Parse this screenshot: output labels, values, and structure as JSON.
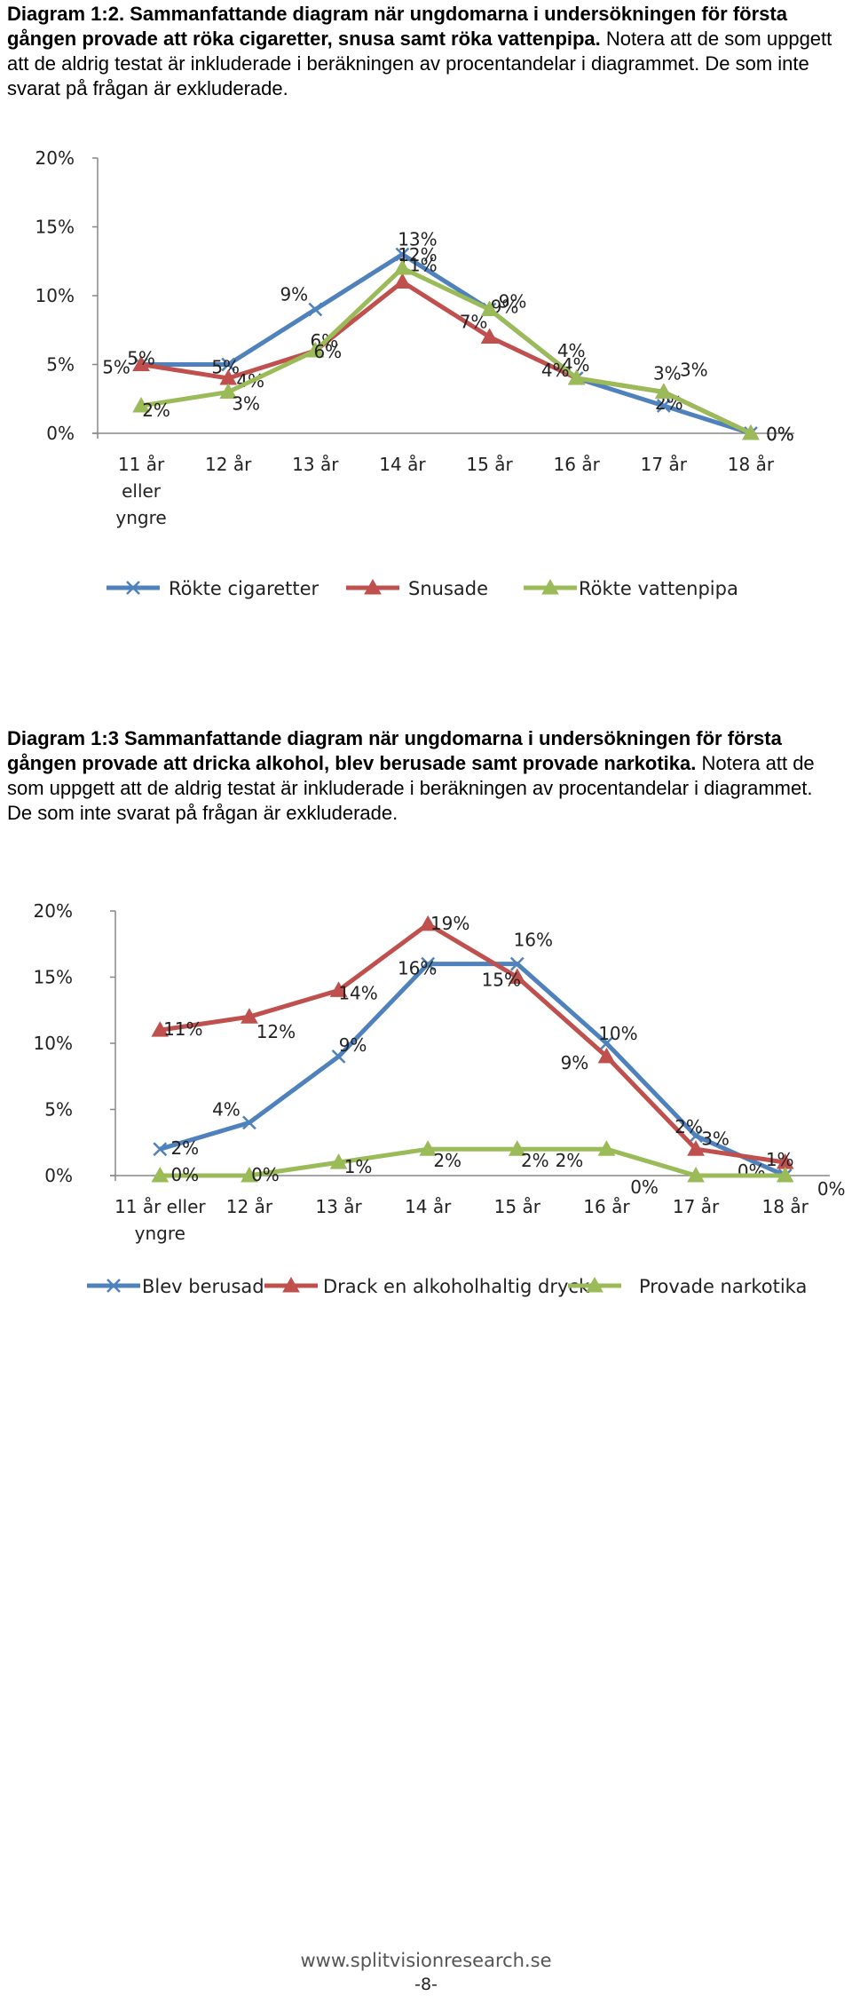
{
  "captions": [
    {
      "bold": "Diagram 1:2. Sammanfattande diagram när ungdomarna i undersökningen för första gången provade att röka cigaretter, snusa samt röka vattenpipa.",
      "normal": " Notera att de som uppgett att de aldrig testat är inkluderade i beräkningen av procentandelar i diagrammet. De som inte svarat på frågan är exkluderade."
    },
    {
      "bold": "Diagram 1:3 Sammanfattande diagram när ungdomarna i undersökningen för första gången provade att dricka alkohol, blev berusade samt provade narkotika.",
      "normal": " Notera att de som uppgett att de aldrig testat är inkluderade i beräkningen av procentandelar i diagrammet. De som inte svarat på frågan är exkluderade."
    }
  ],
  "chart_data": [
    {
      "type": "line",
      "categories": [
        "11 år eller yngre",
        "12 år",
        "13 år",
        "14 år",
        "15 år",
        "16 år",
        "17 år",
        "18 år"
      ],
      "category_lines": [
        [
          "11 år",
          "eller",
          "yngre"
        ],
        [
          "12 år"
        ],
        [
          "13 år"
        ],
        [
          "14 år"
        ],
        [
          "15 år"
        ],
        [
          "16 år"
        ],
        [
          "17 år"
        ],
        [
          "18 år"
        ]
      ],
      "yticks": [
        "0%",
        "5%",
        "10%",
        "15%",
        "20%"
      ],
      "ylim": [
        0,
        20
      ],
      "legend_position": "bottom",
      "series": [
        {
          "name": "Rökte cigaretter",
          "color": "#4f81bd",
          "marker": "x",
          "values": [
            5,
            5,
            9,
            13,
            9,
            4,
            2,
            0
          ],
          "labels": [
            "5%",
            "5%",
            "9%",
            "13%",
            "9%",
            "4%",
            "2%",
            "0%"
          ]
        },
        {
          "name": "Snusade",
          "color": "#c0504d",
          "marker": "triangle",
          "values": [
            5,
            4,
            6,
            11,
            7,
            4,
            3,
            0
          ],
          "labels": [
            "5%",
            "4%",
            "6%",
            "11%",
            "7%",
            "4%",
            "3%",
            "0%"
          ]
        },
        {
          "name": "Rökte vattenpipa",
          "color": "#9bbb59",
          "marker": "triangle",
          "values": [
            2,
            3,
            6,
            12,
            9,
            4,
            3,
            0
          ],
          "labels": [
            "2%",
            "3%",
            "6%",
            "12%",
            "9%",
            "4%",
            "3%",
            "0%"
          ]
        }
      ]
    },
    {
      "type": "line",
      "categories": [
        "11 år eller yngre",
        "12 år",
        "13 år",
        "14 år",
        "15 år",
        "16 år",
        "17 år",
        "18 år"
      ],
      "category_lines": [
        [
          "11 år eller",
          "yngre"
        ],
        [
          "12 år"
        ],
        [
          "13 år"
        ],
        [
          "14 år"
        ],
        [
          "15 år"
        ],
        [
          "16 år"
        ],
        [
          "17 år"
        ],
        [
          "18 år"
        ]
      ],
      "yticks": [
        "0%",
        "5%",
        "10%",
        "15%",
        "20%"
      ],
      "ylim": [
        0,
        20
      ],
      "legend_position": "bottom",
      "series": [
        {
          "name": "Blev berusad",
          "color": "#4f81bd",
          "marker": "x",
          "values": [
            2,
            4,
            9,
            16,
            16,
            10,
            3,
            0
          ],
          "labels": [
            "2%",
            "4%",
            "9%",
            "16%",
            "16%",
            "10%",
            "3%",
            "0%"
          ]
        },
        {
          "name": "Drack en alkoholhaltig dryck",
          "color": "#c0504d",
          "marker": "triangle",
          "values": [
            11,
            12,
            14,
            19,
            15,
            9,
            2,
            1
          ],
          "labels": [
            "11%",
            "12%",
            "14%",
            "19%",
            "15%",
            "9%",
            "2%",
            "1%"
          ]
        },
        {
          "name": "Provade narkotika",
          "color": "#9bbb59",
          "marker": "triangle",
          "values": [
            0,
            0,
            1,
            2,
            2,
            2,
            0,
            0
          ],
          "labels": [
            "0%",
            "0%",
            "1%",
            "2%",
            "2%",
            "2%",
            "0%",
            "0%"
          ]
        }
      ]
    }
  ],
  "footer": {
    "url": "www.splitvisionresearch.se",
    "page": "-8-"
  }
}
